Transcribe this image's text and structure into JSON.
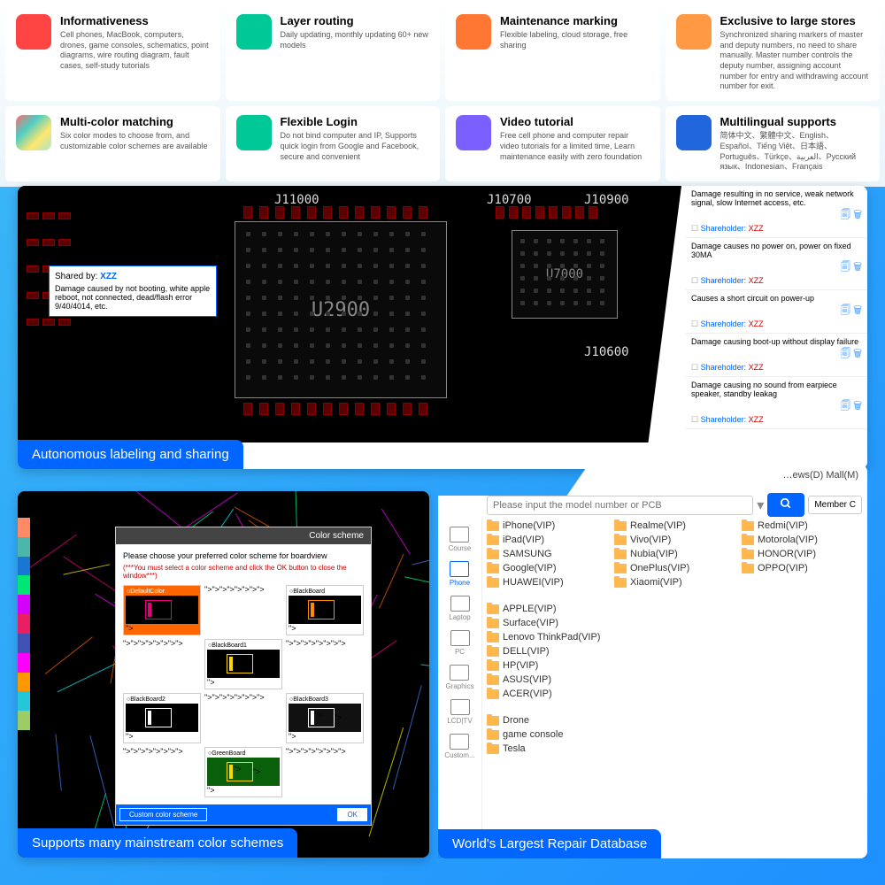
{
  "colors": {
    "accent": "#0066ff",
    "folder": "#ffb84d",
    "warn": "#c00"
  },
  "features": [
    {
      "title": "Informativeness",
      "desc": "Cell phones, MacBook, computers, drones, game consoles, schematics, point diagrams, wire routing diagram, fault cases, self-study tutorials",
      "icon": "ic-books"
    },
    {
      "title": "Layer routing",
      "desc": "Daily updating, monthly updating 60+ new models",
      "icon": "ic-route"
    },
    {
      "title": "Maintenance marking",
      "desc": "Flexible labeling, cloud storage, free sharing",
      "icon": "ic-chat"
    },
    {
      "title": "Exclusive to large stores",
      "desc": "Synchronized sharing markers of master and deputy numbers, no need to share manually. Master number controls the deputy number, assigning account number for entry and withdrawing account number for exit.",
      "icon": "ic-people"
    },
    {
      "title": "Multi-color matching",
      "desc": "Six color modes to choose from, and customizable color schemes are available",
      "icon": "ic-palette"
    },
    {
      "title": "Flexible Login",
      "desc": "Do not bind computer and IP, Supports quick login from Google and Facebook, secure and convenient",
      "icon": "ic-link"
    },
    {
      "title": "Video tutorial",
      "desc": "Free cell phone and computer repair video tutorials for a limited time, Learn maintenance easily with zero foundation",
      "icon": "ic-video"
    },
    {
      "title": "Multilingual supports",
      "desc": "简体中文、繁體中文、English、Español、Tiếng Việt、日本語、Português、Türkçe、العربية、Русский язык、Indonesian、Français",
      "icon": "ic-globe"
    }
  ],
  "panel1": {
    "bar": "Autonomous labeling and sharing",
    "tooltip_shared": "Shared by: ",
    "tooltip_who": "XZZ",
    "tooltip_text": "Damage caused by not booting, white apple reboot, not connected, dead/flash error 9/40/4014, etc.",
    "pcb_labels": [
      "J11000",
      "J10700",
      "J10900",
      "J10600"
    ],
    "pcb_main": "U2900",
    "pcb_secondary": "U7000",
    "notes": [
      {
        "text": "Damage resulting in no service, weak network signal, slow Internet access, etc.",
        "sh": "XZZ"
      },
      {
        "text": "Damage causes no power on, power on fixed 30MA",
        "sh": "XZZ"
      },
      {
        "text": "Causes a short circuit on power-up",
        "sh": "XZZ"
      },
      {
        "text": "Damage causing boot-up without display failure",
        "sh": "XZZ"
      },
      {
        "text": "Damage causing no sound from earpiece speaker, standby leakag",
        "sh": "XZZ"
      }
    ],
    "shareholder_prefix": "Shareholder: "
  },
  "panel2": {
    "bar": "Supports many mainstream color schemes",
    "dialog_title": "Color scheme",
    "dialog_intro": "Please choose your preferred color scheme for boardview",
    "dialog_warn": "(***You must select a color scheme and click the OK button to close the window***)",
    "schemes": [
      {
        "name": "DefaultColor",
        "bg": "#000",
        "fg": "#e4007f",
        "sel": true
      },
      {
        "name": "BlackBoard",
        "bg": "#000",
        "fg": "#ff8c00"
      },
      {
        "name": "BlackBoard1",
        "bg": "#000",
        "fg": "#ffd700"
      },
      {
        "name": "BlackBoard2",
        "bg": "#000",
        "fg": "#fff"
      },
      {
        "name": "BlackBoard3",
        "bg": "#111",
        "fg": "#fff"
      },
      {
        "name": "GreenBoard",
        "bg": "#0a5f0a",
        "fg": "#ffd700"
      }
    ],
    "custom_btn": "Custom color scheme",
    "ok_btn": "OK",
    "sidebar_colors": [
      "#ff8a65",
      "#4db6ac",
      "#1976d2",
      "#00e676",
      "#d500f9",
      "#e91e63",
      "#3f51b5",
      "#ff00ff",
      "#ff9800",
      "#26c6da",
      "#9ccc65"
    ]
  },
  "panel3": {
    "bar": "World's Largest Repair Database",
    "top_tabs": "…ews(D)    Mall(M)",
    "search_placeholder": "Please input the model number or PCB",
    "member_btn": "Member C",
    "nav": [
      {
        "label": "Course"
      },
      {
        "label": "Phone",
        "active": true
      },
      {
        "label": "Laptop"
      },
      {
        "label": "PC"
      },
      {
        "label": "Graphics"
      },
      {
        "label": "LCD|TV"
      },
      {
        "label": "Custom..."
      }
    ],
    "brands_row1": [
      [
        "iPhone(VIP)",
        "Realme(VIP)",
        "Redmi(VIP)"
      ],
      [
        "iPad(VIP)",
        "Vivo(VIP)",
        "Motorola(VIP)"
      ],
      [
        "SAMSUNG",
        "Nubia(VIP)",
        "HONOR(VIP)"
      ],
      [
        "Google(VIP)",
        "OnePlus(VIP)",
        "OPPO(VIP)"
      ],
      [
        "HUAWEI(VIP)",
        "Xiaomi(VIP)",
        ""
      ]
    ],
    "brands_row2": [
      "APPLE(VIP)",
      "Surface(VIP)",
      "Lenovo ThinkPad(VIP)",
      "DELL(VIP)",
      "HP(VIP)",
      "ASUS(VIP)",
      "ACER(VIP)"
    ],
    "brands_row3": [
      "Drone",
      "game console",
      "Tesla"
    ]
  }
}
